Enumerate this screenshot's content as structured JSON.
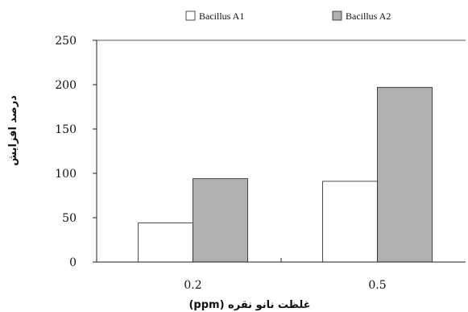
{
  "chart_data": {
    "type": "bar",
    "categories": [
      "0.2",
      "0.5"
    ],
    "series": [
      {
        "name": "Bacillus A1",
        "values": [
          44,
          91
        ],
        "color": "#ffffff"
      },
      {
        "name": "Bacillus A2",
        "values": [
          94,
          197
        ],
        "color": "#b0b0b0"
      }
    ],
    "title": "",
    "xlabel": "غلظت نانو نقره (ppm)",
    "ylabel": "درصد افزایش",
    "ylim": [
      0,
      250
    ],
    "yticks": [
      "0",
      "50",
      "100",
      "150",
      "200",
      "250"
    ],
    "grid": false,
    "legend_position": "top"
  }
}
